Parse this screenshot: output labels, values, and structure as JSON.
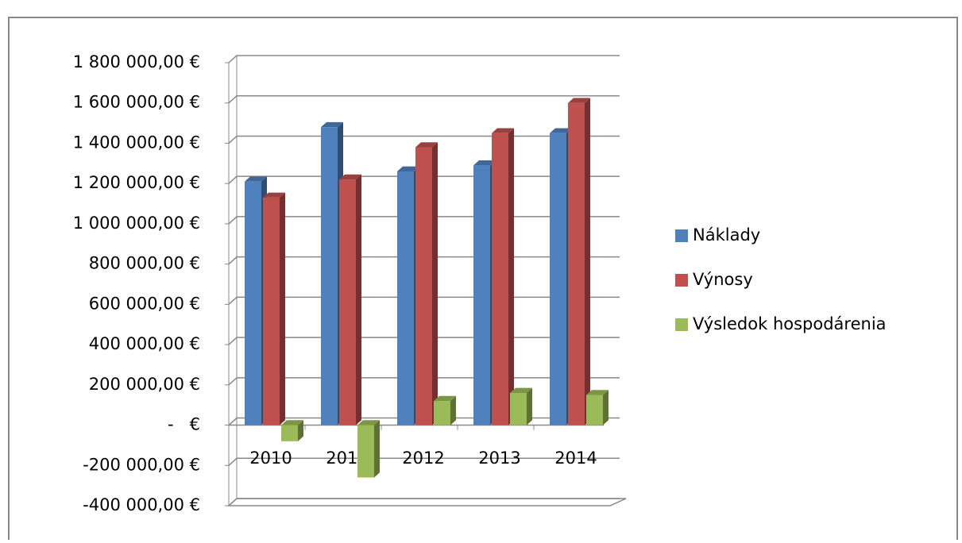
{
  "chart_data": {
    "type": "bar3d",
    "categories": [
      "2010",
      "2011",
      "2012",
      "2013",
      "2014"
    ],
    "series": [
      {
        "name": "Náklady",
        "color": "#4f81bd",
        "values": [
          1210000,
          1480000,
          1260000,
          1290000,
          1450000
        ]
      },
      {
        "name": "Výnosy",
        "color": "#c0504d",
        "values": [
          1130000,
          1220000,
          1380000,
          1450000,
          1600000
        ]
      },
      {
        "name": "Výsledok hospodárenia",
        "color": "#9bbb59",
        "values": [
          -80000,
          -260000,
          120000,
          160000,
          150000
        ]
      }
    ],
    "ylim": [
      -400000,
      1800000
    ],
    "yticks": [
      {
        "value": -400000,
        "label": "-400 000,00 €"
      },
      {
        "value": -200000,
        "label": "-200 000,00 €"
      },
      {
        "value": 0,
        "label": "-   €"
      },
      {
        "value": 200000,
        "label": "200 000,00 €"
      },
      {
        "value": 400000,
        "label": "400 000,00 €"
      },
      {
        "value": 600000,
        "label": "600 000,00 €"
      },
      {
        "value": 800000,
        "label": "800 000,00 €"
      },
      {
        "value": 1000000,
        "label": "1 000 000,00 €"
      },
      {
        "value": 1200000,
        "label": "1 200 000,00 €"
      },
      {
        "value": 1400000,
        "label": "1 400 000,00 €"
      },
      {
        "value": 1600000,
        "label": "1 600 000,00 €"
      },
      {
        "value": 1800000,
        "label": "1 800 000,00 €"
      }
    ],
    "grid": true,
    "legend": "right"
  }
}
